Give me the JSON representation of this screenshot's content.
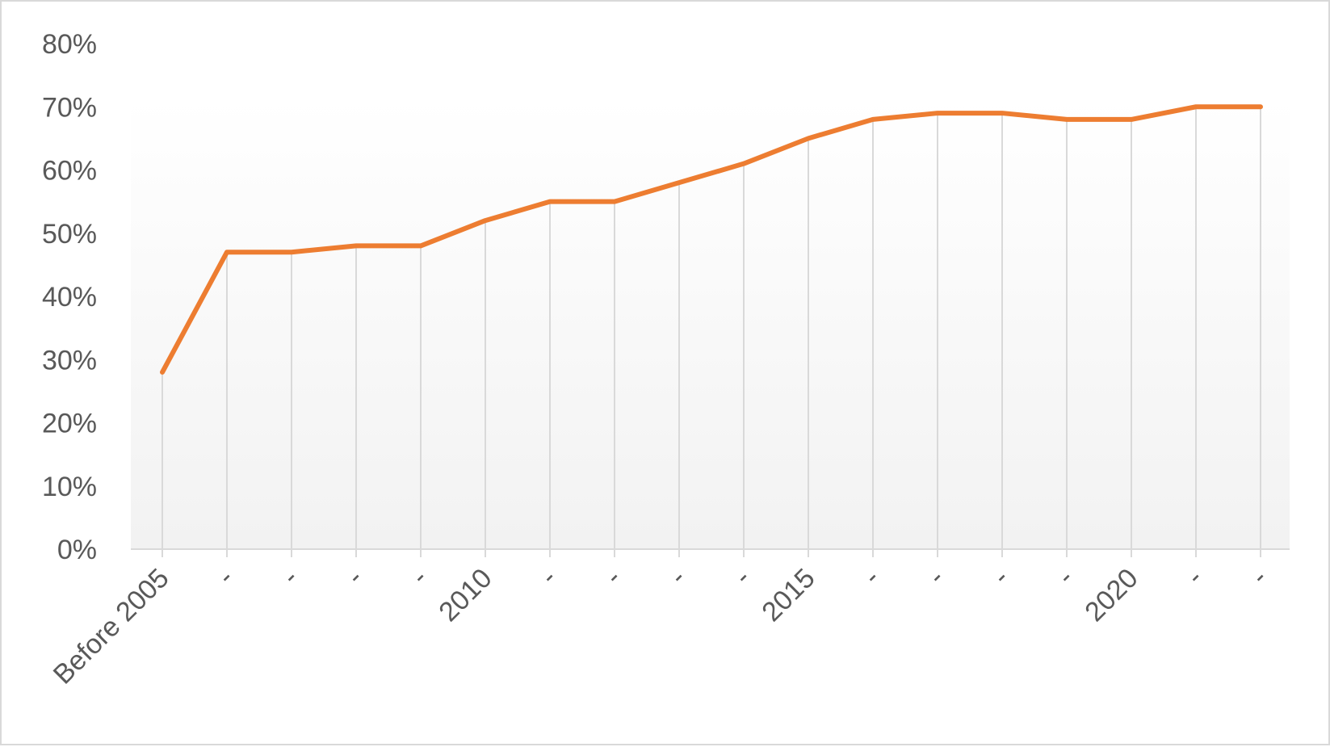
{
  "chart_data": {
    "type": "line",
    "title": "",
    "xlabel": "",
    "ylabel": "",
    "categories": [
      "Before 2005",
      "-",
      "-",
      "-",
      "-",
      "2010",
      "-",
      "-",
      "-",
      "-",
      "2015",
      "-",
      "-",
      "-",
      "-",
      "2020",
      "-",
      "-"
    ],
    "series": [
      {
        "values": [
          28,
          47,
          47,
          48,
          48,
          52,
          55,
          55,
          58,
          61,
          65,
          68,
          69,
          69,
          68,
          68,
          70,
          70
        ]
      }
    ],
    "y_ticks": [
      "0%",
      "10%",
      "20%",
      "30%",
      "40%",
      "50%",
      "60%",
      "70%",
      "80%"
    ],
    "ylim": [
      0,
      80
    ],
    "line_color": "#ED7D31",
    "gridlines": "vertical drop lines per category",
    "legend": "none"
  }
}
